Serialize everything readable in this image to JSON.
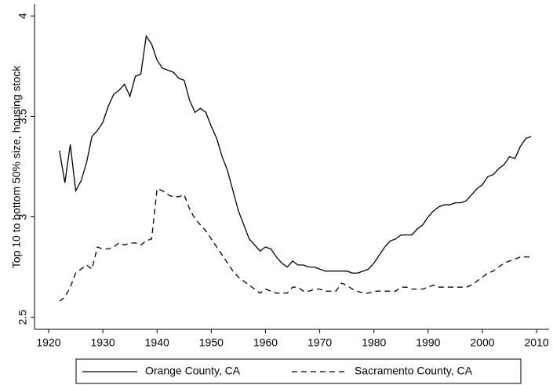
{
  "chart_data": {
    "type": "line",
    "y_label": "Top 10 to bottom 50% size, housing stock",
    "x": [
      1922,
      1923,
      1924,
      1925,
      1926,
      1927,
      1928,
      1929,
      1930,
      1931,
      1932,
      1933,
      1934,
      1935,
      1936,
      1937,
      1938,
      1939,
      1940,
      1941,
      1942,
      1943,
      1944,
      1945,
      1946,
      1947,
      1948,
      1949,
      1950,
      1951,
      1952,
      1953,
      1954,
      1955,
      1956,
      1957,
      1958,
      1959,
      1960,
      1961,
      1962,
      1963,
      1964,
      1965,
      1966,
      1967,
      1968,
      1969,
      1970,
      1971,
      1972,
      1973,
      1974,
      1975,
      1976,
      1977,
      1978,
      1979,
      1980,
      1981,
      1982,
      1983,
      1984,
      1985,
      1986,
      1987,
      1988,
      1989,
      1990,
      1991,
      1992,
      1993,
      1994,
      1995,
      1996,
      1997,
      1998,
      1999,
      2000,
      2001,
      2002,
      2003,
      2004,
      2005,
      2006,
      2007,
      2008,
      2009
    ],
    "series": [
      {
        "name": "Orange County, CA",
        "color": "#000000",
        "style": "solid",
        "values": [
          3.33,
          3.17,
          3.36,
          3.13,
          3.18,
          3.27,
          3.4,
          3.43,
          3.47,
          3.55,
          3.61,
          3.63,
          3.66,
          3.6,
          3.7,
          3.71,
          3.9,
          3.86,
          3.78,
          3.74,
          3.73,
          3.72,
          3.69,
          3.68,
          3.58,
          3.52,
          3.54,
          3.52,
          3.45,
          3.39,
          3.3,
          3.23,
          3.13,
          3.03,
          2.96,
          2.89,
          2.86,
          2.83,
          2.85,
          2.84,
          2.8,
          2.77,
          2.75,
          2.78,
          2.76,
          2.76,
          2.75,
          2.75,
          2.74,
          2.73,
          2.73,
          2.73,
          2.73,
          2.73,
          2.72,
          2.72,
          2.73,
          2.74,
          2.77,
          2.81,
          2.85,
          2.88,
          2.89,
          2.91,
          2.91,
          2.91,
          2.94,
          2.96,
          3.0,
          3.03,
          3.05,
          3.06,
          3.06,
          3.07,
          3.07,
          3.08,
          3.11,
          3.14,
          3.16,
          3.2,
          3.21,
          3.24,
          3.26,
          3.3,
          3.29,
          3.35,
          3.39,
          3.4
        ]
      },
      {
        "name": "Sacramento County, CA",
        "color": "#000000",
        "style": "dashed",
        "values": [
          2.58,
          2.6,
          2.65,
          2.72,
          2.74,
          2.76,
          2.74,
          2.85,
          2.84,
          2.84,
          2.85,
          2.87,
          2.86,
          2.87,
          2.87,
          2.86,
          2.88,
          2.89,
          3.14,
          3.13,
          3.11,
          3.1,
          3.1,
          3.11,
          3.04,
          2.99,
          2.96,
          2.93,
          2.89,
          2.85,
          2.81,
          2.77,
          2.73,
          2.7,
          2.68,
          2.66,
          2.64,
          2.62,
          2.64,
          2.63,
          2.62,
          2.62,
          2.62,
          2.65,
          2.65,
          2.63,
          2.63,
          2.64,
          2.64,
          2.63,
          2.63,
          2.63,
          2.67,
          2.66,
          2.64,
          2.63,
          2.62,
          2.62,
          2.63,
          2.63,
          2.63,
          2.63,
          2.63,
          2.65,
          2.65,
          2.64,
          2.64,
          2.64,
          2.65,
          2.66,
          2.65,
          2.65,
          2.65,
          2.65,
          2.65,
          2.65,
          2.66,
          2.68,
          2.7,
          2.72,
          2.73,
          2.75,
          2.77,
          2.78,
          2.79,
          2.8,
          2.8,
          2.8
        ]
      }
    ],
    "xlim": [
      1917.4,
      2012.3
    ],
    "xticks": [
      1920,
      1930,
      1940,
      1950,
      1960,
      1970,
      1980,
      1990,
      2000,
      2010
    ],
    "ylim": [
      2.44,
      4.06
    ],
    "yticks": [
      2.5,
      3,
      3.5,
      4
    ],
    "legend": "bottom"
  }
}
